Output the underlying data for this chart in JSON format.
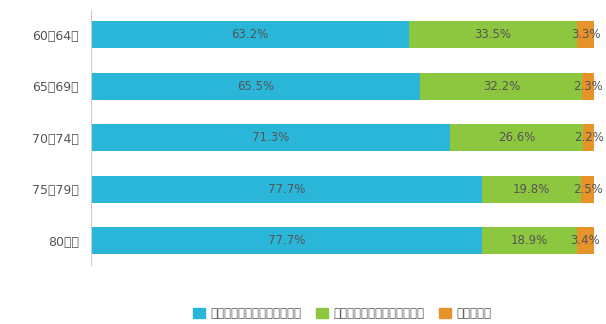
{
  "categories": [
    "60～64歳",
    "65～69歳",
    "70～74歳",
    "75～79歳",
    "80歳～"
  ],
  "series": [
    {
      "label": "不安と感じていることはない",
      "color": "#29b6d8",
      "values": [
        63.2,
        65.5,
        71.3,
        77.7,
        77.7
      ]
    },
    {
      "label": "不安と感じていることがある",
      "color": "#8dc63f",
      "values": [
        33.5,
        32.2,
        26.6,
        19.8,
        18.9
      ]
    },
    {
      "label": "わからない",
      "color": "#e8932a",
      "values": [
        3.3,
        2.3,
        2.2,
        2.5,
        3.4
      ]
    }
  ],
  "bar_height": 0.52,
  "background_color": "#ffffff",
  "text_color": "#555555",
  "label_fontsize": 8.5,
  "legend_fontsize": 8.5,
  "tick_fontsize": 9
}
